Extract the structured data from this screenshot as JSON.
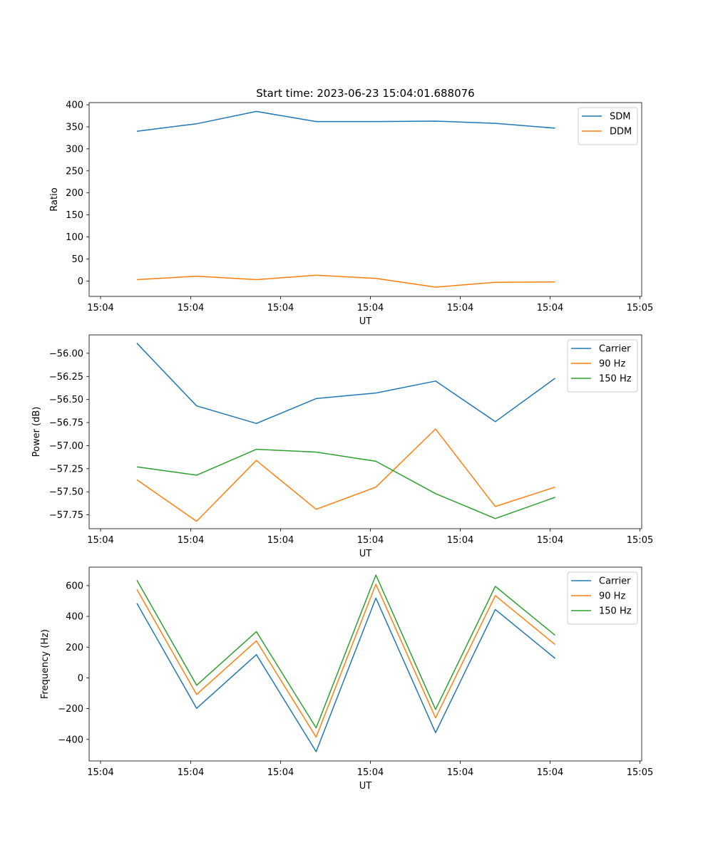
{
  "figure_title": "Start time: 2023-06-23 15:04:01.688076",
  "x_tick_labels": [
    "15:04",
    "15:04",
    "15:04",
    "15:04",
    "15:04",
    "15:04",
    "15:05"
  ],
  "chart_data": [
    {
      "type": "line",
      "title": "Start time: 2023-06-23 15:04:01.688076",
      "xlabel": "UT",
      "ylabel": "Ratio",
      "x": [
        1,
        2,
        3,
        4,
        5,
        6,
        7,
        8
      ],
      "xlim": [
        0.2,
        9.45
      ],
      "ylim": [
        -35,
        405
      ],
      "yticks": [
        0,
        50,
        100,
        150,
        200,
        250,
        300,
        350,
        400
      ],
      "ytick_labels": [
        "0",
        "50",
        "100",
        "150",
        "200",
        "250",
        "300",
        "350",
        "400"
      ],
      "legend": "top-right",
      "grid": false,
      "series": [
        {
          "name": "SDM",
          "color": "#1f77b4",
          "values": [
            340,
            357,
            385,
            362,
            362,
            363,
            358,
            347
          ]
        },
        {
          "name": "DDM",
          "color": "#ff7f0e",
          "values": [
            3,
            11,
            3,
            13,
            6,
            -14,
            -3,
            -2
          ]
        }
      ]
    },
    {
      "type": "line",
      "title": "",
      "xlabel": "UT",
      "ylabel": "Power (dB)",
      "x": [
        1,
        2,
        3,
        4,
        5,
        6,
        7,
        8
      ],
      "xlim": [
        0.2,
        9.45
      ],
      "ylim": [
        -57.9,
        -55.8
      ],
      "yticks": [
        -56.0,
        -56.25,
        -56.5,
        -56.75,
        -57.0,
        -57.25,
        -57.5,
        -57.75
      ],
      "ytick_labels": [
        "−56.00",
        "−56.25",
        "−56.50",
        "−56.75",
        "−57.00",
        "−57.25",
        "−57.50",
        "−57.75"
      ],
      "legend": "top-right",
      "grid": false,
      "series": [
        {
          "name": "Carrier",
          "color": "#1f77b4",
          "values": [
            -55.89,
            -56.57,
            -56.76,
            -56.49,
            -56.43,
            -56.3,
            -56.74,
            -56.27
          ]
        },
        {
          "name": "90 Hz",
          "color": "#ff7f0e",
          "values": [
            -57.37,
            -57.82,
            -57.16,
            -57.69,
            -57.45,
            -56.82,
            -57.66,
            -57.45
          ]
        },
        {
          "name": "150 Hz",
          "color": "#2ca02c",
          "values": [
            -57.23,
            -57.32,
            -57.04,
            -57.07,
            -57.17,
            -57.52,
            -57.79,
            -57.56
          ]
        }
      ]
    },
    {
      "type": "line",
      "title": "",
      "xlabel": "UT",
      "ylabel": "Frequency (Hz)",
      "x": [
        1,
        2,
        3,
        4,
        5,
        6,
        7,
        8
      ],
      "xlim": [
        0.2,
        9.45
      ],
      "ylim": [
        -540,
        720
      ],
      "yticks": [
        600,
        400,
        200,
        0,
        -200,
        -400
      ],
      "ytick_labels": [
        "600",
        "400",
        "200",
        "0",
        "−200",
        "−400"
      ],
      "legend": "top-right",
      "grid": false,
      "series": [
        {
          "name": "Carrier",
          "color": "#1f77b4",
          "values": [
            485,
            -198,
            151,
            -480,
            519,
            -356,
            445,
            127
          ]
        },
        {
          "name": "90 Hz",
          "color": "#ff7f0e",
          "values": [
            575,
            -108,
            241,
            -385,
            609,
            -260,
            535,
            217
          ]
        },
        {
          "name": "150 Hz",
          "color": "#2ca02c",
          "values": [
            635,
            -48,
            301,
            -325,
            669,
            -205,
            595,
            277
          ]
        }
      ]
    }
  ]
}
